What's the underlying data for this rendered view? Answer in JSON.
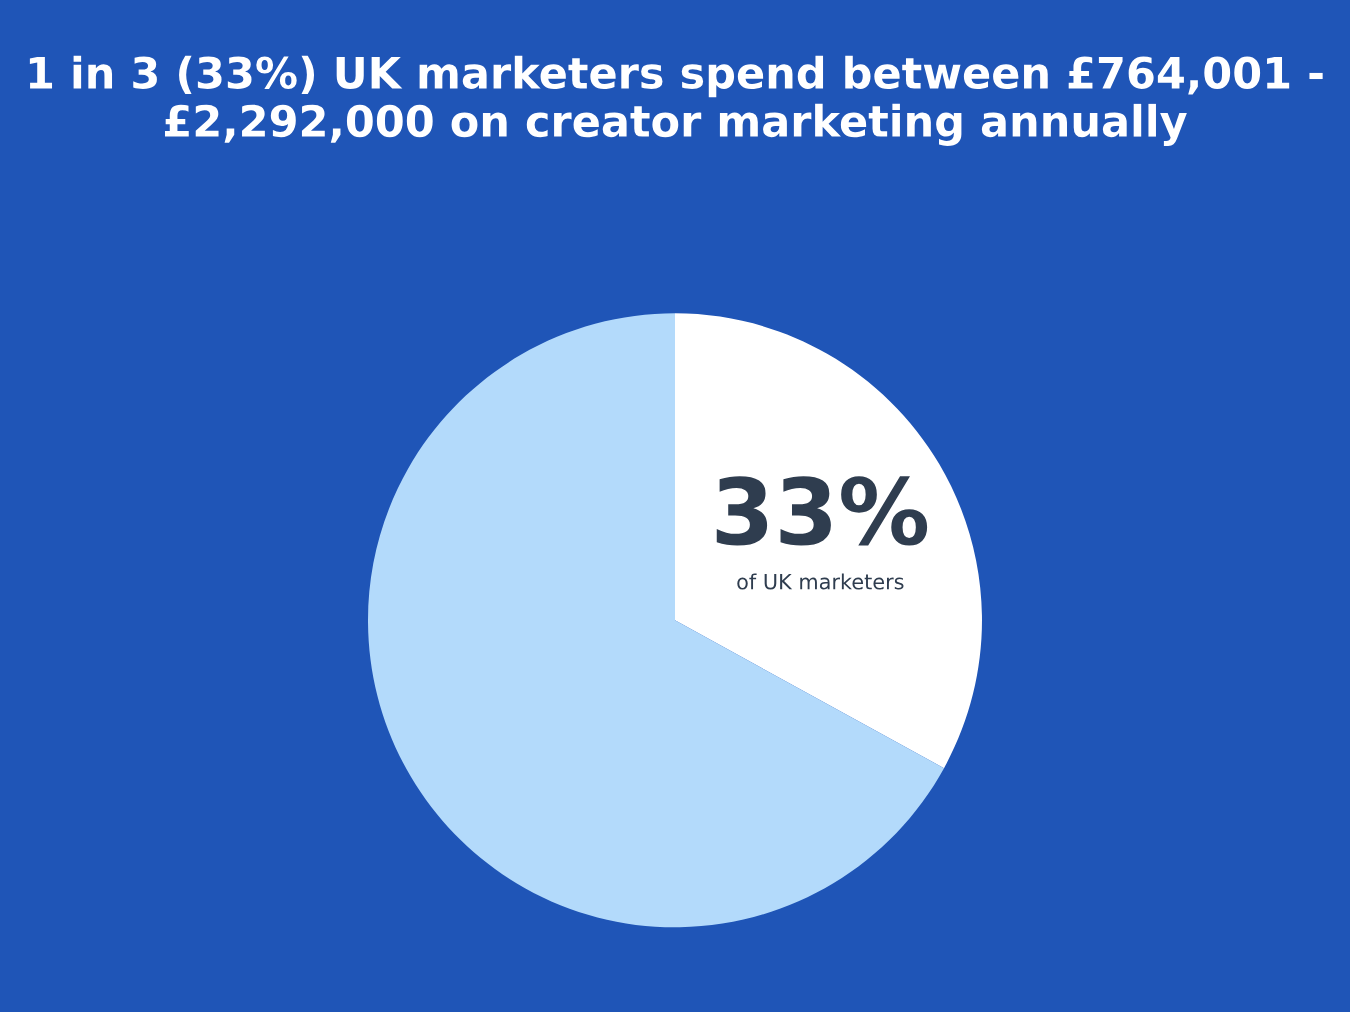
{
  "chart_data": {
    "type": "pie",
    "title": "1 in 3 (33%) UK marketers spend between £764,001 - £2,292,000 on creator marketing annually",
    "categories": [
      "of UK marketers",
      null
    ],
    "values": [
      33,
      67
    ],
    "colors": [
      "#ffffff",
      "#b3dafb"
    ],
    "value_labels": [
      "33%",
      null
    ]
  }
}
